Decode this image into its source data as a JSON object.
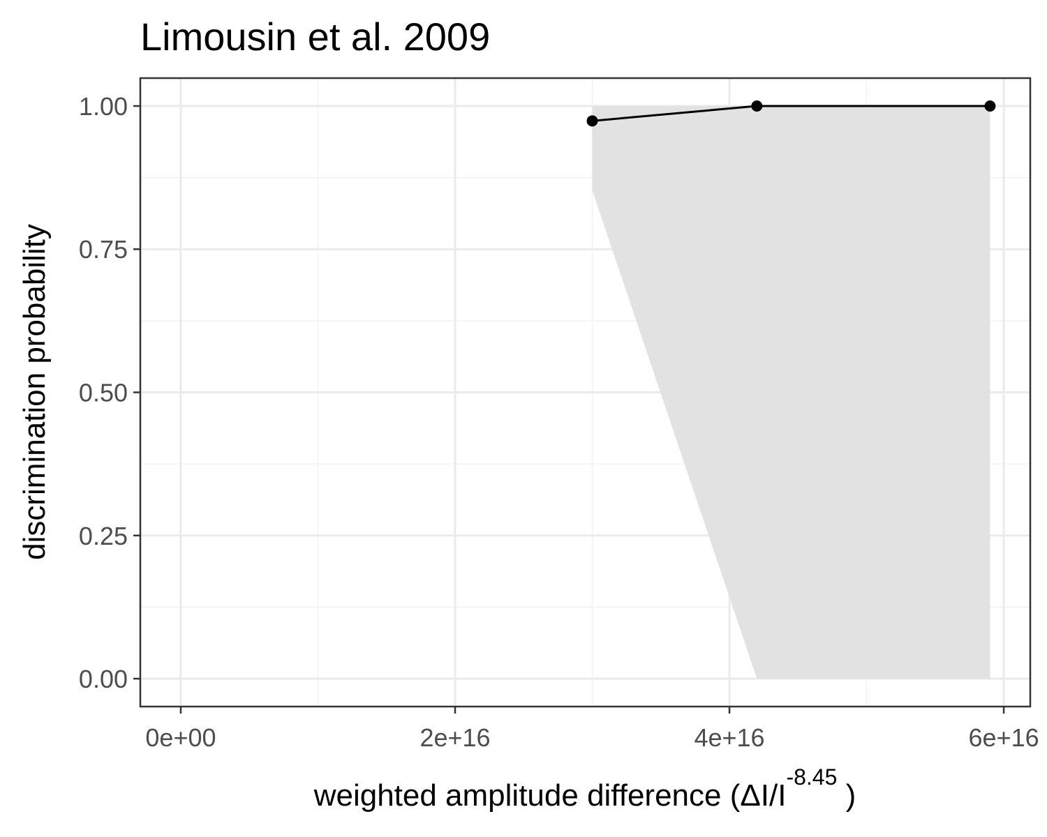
{
  "chart_data": {
    "type": "line",
    "title": "Limousin et al. 2009",
    "x_label": "weighted  amplitude  difference (ΔI/I",
    "x_label_superscript": "-8.45",
    "x_label_end": " )",
    "y_label": "discrimination probability",
    "x": [
      30000000000000000,
      42000000000000000,
      59000000000000000
    ],
    "series": [
      {
        "color": "#000000",
        "values": [
          0.974,
          1.0,
          1.0
        ]
      }
    ],
    "ribbon": {
      "color": "#e0e0e0",
      "lower": [
        0.853,
        0.0,
        0.0
      ],
      "upper": [
        1.0,
        1.0,
        1.0
      ]
    },
    "xlim": [
      -2950000000000000,
      61930000000000000
    ],
    "ylim": [
      -0.0487,
      1.0487
    ],
    "xticks": [
      {
        "value": 0,
        "label": "0e+00"
      },
      {
        "value": 20000000000000000,
        "label": "2e+16"
      },
      {
        "value": 40000000000000000,
        "label": "4e+16"
      },
      {
        "value": 60000000000000000,
        "label": "6e+16"
      }
    ],
    "yticks": [
      {
        "value": 0,
        "label": "0.00"
      },
      {
        "value": 0.25,
        "label": "0.25"
      },
      {
        "value": 0.5,
        "label": "0.50"
      },
      {
        "value": 0.75,
        "label": "0.75"
      },
      {
        "value": 1.0,
        "label": "1.00"
      }
    ],
    "grid": true
  }
}
